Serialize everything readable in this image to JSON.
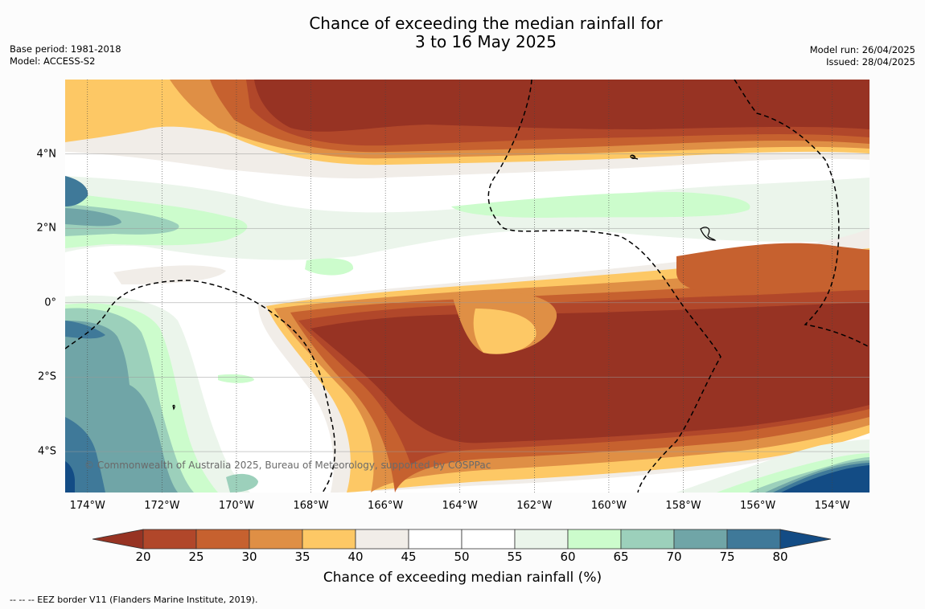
{
  "title": {
    "line1": "Chance of exceeding the median rainfall for",
    "line2": "3 to 16 May 2025"
  },
  "meta_left": {
    "base_period": "Base period: 1981-2018",
    "model": "Model: ACCESS-S2"
  },
  "meta_right": {
    "model_run": "Model run: 26/04/2025",
    "issued": "Issued: 28/04/2025"
  },
  "map": {
    "lon_range": [
      -174.6,
      -153.0
    ],
    "lat_range": [
      -5.1,
      6.0
    ],
    "x_ticks": [
      {
        "value": -174,
        "label": "174°W"
      },
      {
        "value": -172,
        "label": "172°W"
      },
      {
        "value": -170,
        "label": "170°W"
      },
      {
        "value": -168,
        "label": "168°W"
      },
      {
        "value": -166,
        "label": "166°W"
      },
      {
        "value": -164,
        "label": "164°W"
      },
      {
        "value": -162,
        "label": "162°W"
      },
      {
        "value": -160,
        "label": "160°W"
      },
      {
        "value": -158,
        "label": "158°W"
      },
      {
        "value": -156,
        "label": "156°W"
      },
      {
        "value": -154,
        "label": "154°W"
      }
    ],
    "y_ticks": [
      {
        "value": 4,
        "label": "4°N"
      },
      {
        "value": 2,
        "label": "2°N"
      },
      {
        "value": 0,
        "label": "0°"
      },
      {
        "value": -2,
        "label": "2°S"
      },
      {
        "value": -4,
        "label": "4°S"
      }
    ],
    "gridlines": true,
    "credit": "© Commonwealth of Australia 2025, Bureau of Meteorology, supported by COSPPac"
  },
  "colorbar": {
    "title": "Chance of exceeding median rainfall (%)",
    "ticks": [
      "20",
      "25",
      "30",
      "35",
      "40",
      "45",
      "50",
      "55",
      "60",
      "65",
      "70",
      "75",
      "80"
    ],
    "colors": [
      "#973323",
      "#b1472a",
      "#c6612f",
      "#df8f45",
      "#fdc865",
      "#f1ede8",
      "#ffffff",
      "#ffffff",
      "#ebf5eb",
      "#ccfccc",
      "#9cd0bb",
      "#70a5a7",
      "#3f7999",
      "#134c85"
    ]
  },
  "footnote": "--  --  -- EEZ border V11 (Flanders Marine Institute, 2019)."
}
